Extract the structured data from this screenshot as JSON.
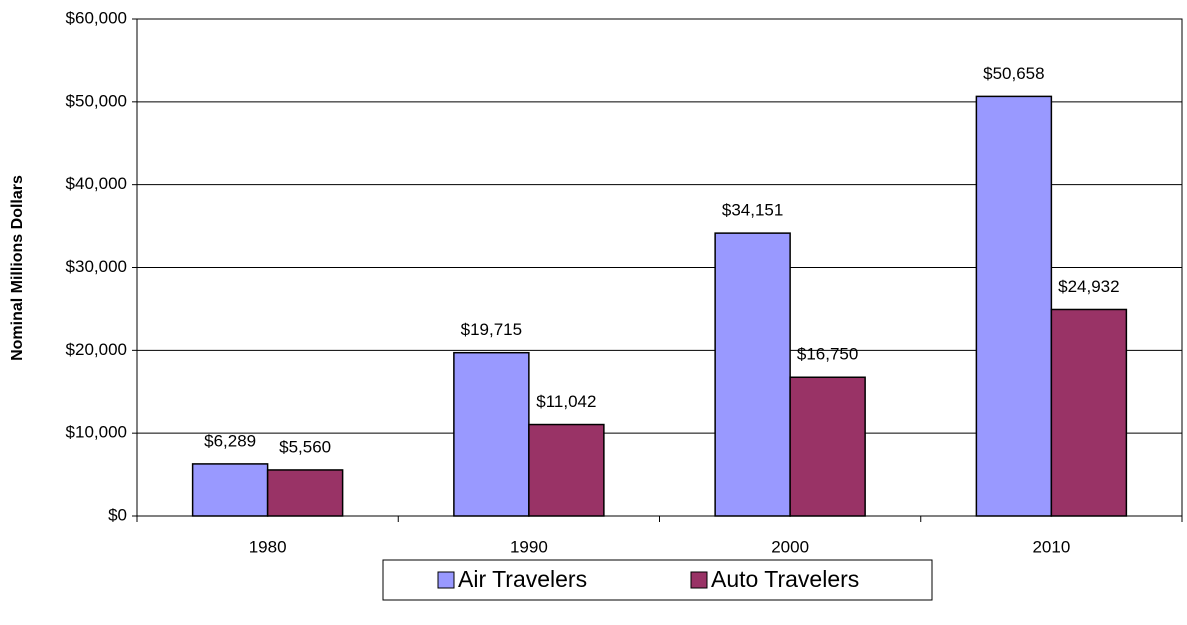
{
  "chart_data": {
    "type": "bar",
    "y_label": "Nominal Millions Dollars",
    "categories": [
      "1980",
      "1990",
      "2000",
      "2010"
    ],
    "series": [
      {
        "name": "Air Travelers",
        "color": "#9999ff",
        "values": [
          6289,
          19715,
          34151,
          50658
        ],
        "value_labels": [
          "$6,289",
          "$19,715",
          "$34,151",
          "$50,658"
        ]
      },
      {
        "name": "Auto Travelers",
        "color": "#993366",
        "values": [
          5560,
          11042,
          16750,
          24932
        ],
        "value_labels": [
          "$5,560",
          "$11,042",
          "$16,750",
          "$24,932"
        ]
      }
    ],
    "ylim": [
      0,
      60000
    ],
    "yticks": [
      {
        "value": 0,
        "label": "$0"
      },
      {
        "value": 10000,
        "label": "$10,000"
      },
      {
        "value": 20000,
        "label": "$20,000"
      },
      {
        "value": 30000,
        "label": "$30,000"
      },
      {
        "value": 40000,
        "label": "$40,000"
      },
      {
        "value": 50000,
        "label": "$50,000"
      },
      {
        "value": 60000,
        "label": "$60,000"
      }
    ],
    "grid": true,
    "legend": "bottom"
  }
}
